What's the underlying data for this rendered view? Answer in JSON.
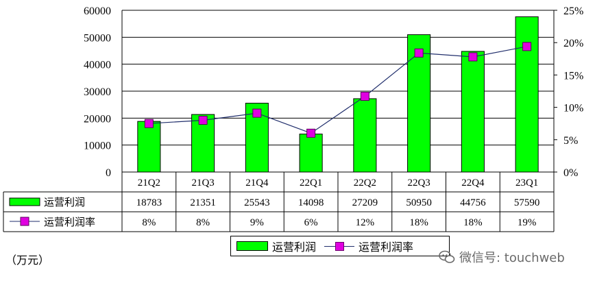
{
  "chart_data": {
    "type": "bar",
    "categories": [
      "21Q2",
      "21Q3",
      "21Q4",
      "22Q1",
      "22Q2",
      "22Q3",
      "22Q4",
      "23Q1"
    ],
    "series": [
      {
        "name": "运营利润",
        "type": "bar",
        "axis": "left",
        "values": [
          18783,
          21351,
          25543,
          14098,
          27209,
          50950,
          44756,
          57590
        ],
        "color": "#00ff00"
      },
      {
        "name": "运营利润率",
        "type": "line",
        "axis": "right",
        "values": [
          7.5,
          8.0,
          9.1,
          6.0,
          11.7,
          18.4,
          17.8,
          19.4
        ],
        "labels": [
          "8%",
          "8%",
          "9%",
          "6%",
          "12%",
          "18%",
          "18%",
          "19%"
        ],
        "color": "#1f2d6b",
        "marker_color": "#e000e0"
      }
    ],
    "y_left": {
      "min": 0,
      "max": 60000,
      "ticks": [
        "0",
        "10000",
        "20000",
        "30000",
        "40000",
        "50000",
        "60000"
      ]
    },
    "y_right": {
      "min": 0,
      "max": 25,
      "ticks": [
        "0%",
        "5%",
        "10%",
        "15%",
        "20%",
        "25%"
      ]
    },
    "ylabel": "（万元）",
    "grid": true,
    "legend_position": "bottom",
    "data_table": true
  },
  "table": {
    "row1_label": "运营利润",
    "row1_values": [
      "18783",
      "21351",
      "25543",
      "14098",
      "27209",
      "50950",
      "44756",
      "57590"
    ],
    "row2_label": "运营利润率",
    "row2_values": [
      "8%",
      "8%",
      "9%",
      "6%",
      "12%",
      "18%",
      "18%",
      "19%"
    ]
  },
  "legend": {
    "bar_label": "运营利润",
    "line_label": "运营利润率"
  },
  "unit_label": "（万元）",
  "watermark": {
    "text": "微信号: touchweb",
    "icon": "wechat-icon"
  }
}
